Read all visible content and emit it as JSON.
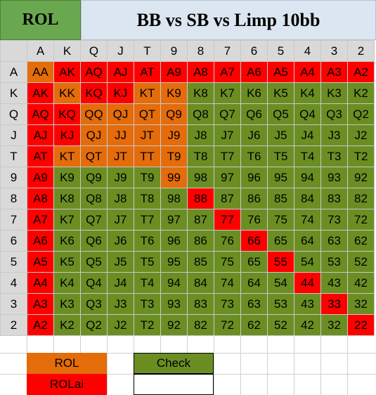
{
  "header": {
    "left_label": "ROL",
    "title": "BB vs SB vs Limp 10bb"
  },
  "ranks": [
    "A",
    "K",
    "Q",
    "J",
    "T",
    "9",
    "8",
    "7",
    "6",
    "5",
    "4",
    "3",
    "2"
  ],
  "action_colors": {
    "ROLai": "#ff0000",
    "ROL": "#e46c0a",
    "Check": "#6b8e23"
  },
  "grid": [
    [
      [
        "AA",
        "ROL"
      ],
      [
        "AK",
        "ROLai"
      ],
      [
        "AQ",
        "ROLai"
      ],
      [
        "AJ",
        "ROLai"
      ],
      [
        "AT",
        "ROLai"
      ],
      [
        "A9",
        "ROLai"
      ],
      [
        "A8",
        "ROLai"
      ],
      [
        "A7",
        "ROLai"
      ],
      [
        "A6",
        "ROLai"
      ],
      [
        "A5",
        "ROLai"
      ],
      [
        "A4",
        "ROLai"
      ],
      [
        "A3",
        "ROLai"
      ],
      [
        "A2",
        "ROLai"
      ]
    ],
    [
      [
        "AK",
        "ROLai"
      ],
      [
        "KK",
        "ROL"
      ],
      [
        "KQ",
        "ROLai"
      ],
      [
        "KJ",
        "ROLai"
      ],
      [
        "KT",
        "ROL"
      ],
      [
        "K9",
        "ROL"
      ],
      [
        "K8",
        "Check"
      ],
      [
        "K7",
        "Check"
      ],
      [
        "K6",
        "Check"
      ],
      [
        "K5",
        "Check"
      ],
      [
        "K4",
        "Check"
      ],
      [
        "K3",
        "Check"
      ],
      [
        "K2",
        "Check"
      ]
    ],
    [
      [
        "AQ",
        "ROLai"
      ],
      [
        "KQ",
        "ROLai"
      ],
      [
        "QQ",
        "ROL"
      ],
      [
        "QJ",
        "ROL"
      ],
      [
        "QT",
        "ROL"
      ],
      [
        "Q9",
        "ROL"
      ],
      [
        "Q8",
        "Check"
      ],
      [
        "Q7",
        "Check"
      ],
      [
        "Q6",
        "Check"
      ],
      [
        "Q5",
        "Check"
      ],
      [
        "Q4",
        "Check"
      ],
      [
        "Q3",
        "Check"
      ],
      [
        "Q2",
        "Check"
      ]
    ],
    [
      [
        "AJ",
        "ROLai"
      ],
      [
        "KJ",
        "ROLai"
      ],
      [
        "QJ",
        "ROL"
      ],
      [
        "JJ",
        "ROL"
      ],
      [
        "JT",
        "ROL"
      ],
      [
        "J9",
        "ROL"
      ],
      [
        "J8",
        "Check"
      ],
      [
        "J7",
        "Check"
      ],
      [
        "J6",
        "Check"
      ],
      [
        "J5",
        "Check"
      ],
      [
        "J4",
        "Check"
      ],
      [
        "J3",
        "Check"
      ],
      [
        "J2",
        "Check"
      ]
    ],
    [
      [
        "AT",
        "ROLai"
      ],
      [
        "KT",
        "ROL"
      ],
      [
        "QT",
        "ROL"
      ],
      [
        "JT",
        "ROL"
      ],
      [
        "TT",
        "ROL"
      ],
      [
        "T9",
        "ROL"
      ],
      [
        "T8",
        "Check"
      ],
      [
        "T7",
        "Check"
      ],
      [
        "T6",
        "Check"
      ],
      [
        "T5",
        "Check"
      ],
      [
        "T4",
        "Check"
      ],
      [
        "T3",
        "Check"
      ],
      [
        "T2",
        "Check"
      ]
    ],
    [
      [
        "A9",
        "ROLai"
      ],
      [
        "K9",
        "Check"
      ],
      [
        "Q9",
        "Check"
      ],
      [
        "J9",
        "Check"
      ],
      [
        "T9",
        "Check"
      ],
      [
        "99",
        "ROL"
      ],
      [
        "98",
        "Check"
      ],
      [
        "97",
        "Check"
      ],
      [
        "96",
        "Check"
      ],
      [
        "95",
        "Check"
      ],
      [
        "94",
        "Check"
      ],
      [
        "93",
        "Check"
      ],
      [
        "92",
        "Check"
      ]
    ],
    [
      [
        "A8",
        "ROLai"
      ],
      [
        "K8",
        "Check"
      ],
      [
        "Q8",
        "Check"
      ],
      [
        "J8",
        "Check"
      ],
      [
        "T8",
        "Check"
      ],
      [
        "98",
        "Check"
      ],
      [
        "88",
        "ROLai"
      ],
      [
        "87",
        "Check"
      ],
      [
        "86",
        "Check"
      ],
      [
        "85",
        "Check"
      ],
      [
        "84",
        "Check"
      ],
      [
        "83",
        "Check"
      ],
      [
        "82",
        "Check"
      ]
    ],
    [
      [
        "A7",
        "ROLai"
      ],
      [
        "K7",
        "Check"
      ],
      [
        "Q7",
        "Check"
      ],
      [
        "J7",
        "Check"
      ],
      [
        "T7",
        "Check"
      ],
      [
        "97",
        "Check"
      ],
      [
        "87",
        "Check"
      ],
      [
        "77",
        "ROLai"
      ],
      [
        "76",
        "Check"
      ],
      [
        "75",
        "Check"
      ],
      [
        "74",
        "Check"
      ],
      [
        "73",
        "Check"
      ],
      [
        "72",
        "Check"
      ]
    ],
    [
      [
        "A6",
        "ROLai"
      ],
      [
        "K6",
        "Check"
      ],
      [
        "Q6",
        "Check"
      ],
      [
        "J6",
        "Check"
      ],
      [
        "T6",
        "Check"
      ],
      [
        "96",
        "Check"
      ],
      [
        "86",
        "Check"
      ],
      [
        "76",
        "Check"
      ],
      [
        "66",
        "ROLai"
      ],
      [
        "65",
        "Check"
      ],
      [
        "64",
        "Check"
      ],
      [
        "63",
        "Check"
      ],
      [
        "62",
        "Check"
      ]
    ],
    [
      [
        "A5",
        "ROLai"
      ],
      [
        "K5",
        "Check"
      ],
      [
        "Q5",
        "Check"
      ],
      [
        "J5",
        "Check"
      ],
      [
        "T5",
        "Check"
      ],
      [
        "95",
        "Check"
      ],
      [
        "85",
        "Check"
      ],
      [
        "75",
        "Check"
      ],
      [
        "65",
        "Check"
      ],
      [
        "55",
        "ROLai"
      ],
      [
        "54",
        "Check"
      ],
      [
        "53",
        "Check"
      ],
      [
        "52",
        "Check"
      ]
    ],
    [
      [
        "A4",
        "ROLai"
      ],
      [
        "K4",
        "Check"
      ],
      [
        "Q4",
        "Check"
      ],
      [
        "J4",
        "Check"
      ],
      [
        "T4",
        "Check"
      ],
      [
        "94",
        "Check"
      ],
      [
        "84",
        "Check"
      ],
      [
        "74",
        "Check"
      ],
      [
        "64",
        "Check"
      ],
      [
        "54",
        "Check"
      ],
      [
        "44",
        "ROLai"
      ],
      [
        "43",
        "Check"
      ],
      [
        "42",
        "Check"
      ]
    ],
    [
      [
        "A3",
        "ROLai"
      ],
      [
        "K3",
        "Check"
      ],
      [
        "Q3",
        "Check"
      ],
      [
        "J3",
        "Check"
      ],
      [
        "T3",
        "Check"
      ],
      [
        "93",
        "Check"
      ],
      [
        "83",
        "Check"
      ],
      [
        "73",
        "Check"
      ],
      [
        "63",
        "Check"
      ],
      [
        "53",
        "Check"
      ],
      [
        "43",
        "Check"
      ],
      [
        "33",
        "ROLai"
      ],
      [
        "32",
        "Check"
      ]
    ],
    [
      [
        "A2",
        "ROLai"
      ],
      [
        "K2",
        "Check"
      ],
      [
        "Q2",
        "Check"
      ],
      [
        "J2",
        "Check"
      ],
      [
        "T2",
        "Check"
      ],
      [
        "92",
        "Check"
      ],
      [
        "82",
        "Check"
      ],
      [
        "72",
        "Check"
      ],
      [
        "62",
        "Check"
      ],
      [
        "52",
        "Check"
      ],
      [
        "42",
        "Check"
      ],
      [
        "32",
        "Check"
      ],
      [
        "22",
        "ROLai"
      ]
    ]
  ],
  "legend": {
    "rol": "ROL",
    "check": "Check",
    "rolai": "ROLai"
  }
}
